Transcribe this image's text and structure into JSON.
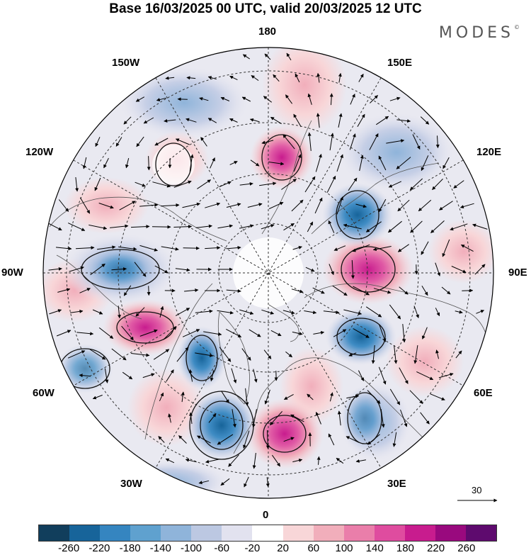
{
  "title": "Base 16/03/2025 00 UTC, valid 20/03/2025 12 UTC",
  "logo": {
    "text": "MODES",
    "mark": "©"
  },
  "map": {
    "projection": "north-polar-stereographic",
    "longitude_labels": {
      "top": "180",
      "top_left": "150W",
      "top_right": "150E",
      "upper_left": "120W",
      "upper_right": "120E",
      "left": "90W",
      "right": "90E",
      "lower_left": "60W",
      "lower_right": "60E",
      "bottom_left": "30W",
      "bottom_right": "30E",
      "bottom": "0"
    }
  },
  "wind_scale": {
    "label": "30"
  },
  "colorbar": {
    "labels": [
      "-260",
      "-220",
      "-180",
      "-140",
      "-100",
      "-60",
      "-20",
      "20",
      "60",
      "100",
      "140",
      "180",
      "220",
      "260"
    ],
    "colors": [
      "#113e5c",
      "#17649a",
      "#3585c0",
      "#5fa1cf",
      "#8fb4da",
      "#bcc8e2",
      "#e2e2ef",
      "#ffffff",
      "#f8d6d8",
      "#f1aebb",
      "#ea7eaa",
      "#df4c9f",
      "#c81c8e",
      "#99097e",
      "#5e0a6e"
    ]
  }
}
